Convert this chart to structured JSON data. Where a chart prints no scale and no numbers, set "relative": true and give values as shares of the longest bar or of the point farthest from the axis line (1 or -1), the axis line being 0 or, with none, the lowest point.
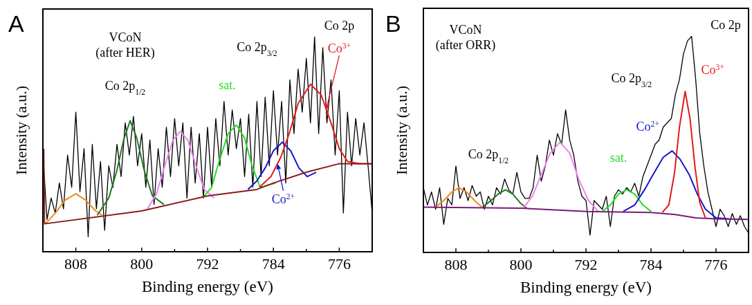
{
  "chart_data": [
    {
      "type": "line",
      "title": "A",
      "xlabel": "Binding energy (eV)",
      "ylabel": "Intensity (a.u.)",
      "relative": true,
      "xlim": [
        812,
        772
      ],
      "xticks": [
        808,
        {
          "value": 804,
          "label": null
        },
        800,
        {
          "value": 796,
          "label": null
        },
        792,
        {
          "value": 788,
          "label": null
        },
        784,
        {
          "value": 780,
          "label": null
        },
        776
      ],
      "annotations": [
        "VCoN\n(after HER)",
        "Co 2p",
        "Co 2p$_{1/2}$",
        "Co 2p$_{3/2}$"
      ],
      "series": [
        {
          "color": "#000000",
          "x": [
            812,
            811.5,
            811,
            810.5,
            810,
            809.5,
            809,
            808.5,
            808,
            807.5,
            807,
            806.5,
            806,
            805.5,
            805,
            804.5,
            804,
            803.5,
            803,
            802.5,
            802,
            801.5,
            801,
            800.5,
            800,
            799.5,
            799,
            798.5,
            798,
            797.5,
            797,
            796.5,
            796,
            795.5,
            795,
            794.5,
            794,
            793.5,
            793,
            792.5,
            792,
            791.5,
            791,
            790.5,
            790,
            789.5,
            789,
            788.5,
            788,
            787.5,
            787,
            786.5,
            786,
            785.5,
            785,
            784.5,
            784,
            783.5,
            783,
            782.5,
            782,
            781.5,
            781,
            780.5,
            780,
            779.5,
            779,
            778.5,
            778,
            777.5,
            777,
            776.5,
            776,
            775.5,
            775,
            774.5,
            774,
            773.5,
            773,
            772.5,
            772
          ],
          "values": [
            0.46,
            0.15,
            0.25,
            0.18,
            0.32,
            0.2,
            0.45,
            0.3,
            0.65,
            0.28,
            0.48,
            0.07,
            0.5,
            0.2,
            0.42,
            0.1,
            0.4,
            0.3,
            0.5,
            0.35,
            0.6,
            0.45,
            0.63,
            0.4,
            0.55,
            0.3,
            0.52,
            0.22,
            0.48,
            0.3,
            0.58,
            0.35,
            0.62,
            0.4,
            0.6,
            0.25,
            0.58,
            0.32,
            0.55,
            0.25,
            0.58,
            0.3,
            0.62,
            0.4,
            0.7,
            0.45,
            0.66,
            0.48,
            0.62,
            0.35,
            0.64,
            0.3,
            0.7,
            0.35,
            0.72,
            0.4,
            0.75,
            0.45,
            0.7,
            0.32,
            0.8,
            0.55,
            0.85,
            0.65,
            0.9,
            0.6,
            1.0,
            0.55,
            0.95,
            0.6,
            0.8,
            0.45,
            0.75,
            0.18,
            0.65,
            0.4,
            0.62,
            0.45,
            0.6,
            0.4,
            0.18
          ]
        },
        {
          "color": "#f08a1c",
          "x": [
            811.7,
            810.5,
            809.3,
            808,
            806.8,
            805.6,
            804.8
          ],
          "values": [
            0.13,
            0.18,
            0.24,
            0.27,
            0.24,
            0.19,
            0.17
          ]
        },
        {
          "color": "#1e7b1e",
          "x": [
            805.4,
            804,
            803,
            802.2,
            801.4,
            800.6,
            799.7,
            798.7,
            797.3
          ],
          "values": [
            0.17,
            0.25,
            0.38,
            0.52,
            0.61,
            0.53,
            0.38,
            0.26,
            0.22
          ]
        },
        {
          "color": "#ee82ee",
          "x": [
            799.3,
            798.2,
            797.2,
            796.2,
            795.3,
            794.4,
            793.4,
            792.4,
            791.2
          ],
          "values": [
            0.2,
            0.27,
            0.4,
            0.52,
            0.56,
            0.52,
            0.4,
            0.29,
            0.25
          ]
        },
        {
          "name": "sat.",
          "color": "#22dd22",
          "x": [
            792.6,
            791.5,
            790.6,
            789.5,
            788.5,
            787.5,
            786.6,
            785.6,
            783.7
          ],
          "values": [
            0.25,
            0.3,
            0.42,
            0.55,
            0.59,
            0.53,
            0.4,
            0.3,
            0.32
          ]
        },
        {
          "name": "Co$^{2+}$",
          "color": "#1515d0",
          "x": [
            787.1,
            786,
            785,
            784,
            782.9,
            781.9,
            780.9,
            779.9,
            778.8
          ],
          "values": [
            0.29,
            0.33,
            0.39,
            0.47,
            0.51,
            0.47,
            0.39,
            0.35,
            0.37
          ]
        },
        {
          "name": "Co$^{3+}$",
          "color": "#e01b1b",
          "x": [
            785.7,
            784.3,
            783.1,
            782,
            781,
            779.5,
            778.2,
            777,
            776,
            775,
            773.5,
            772.1
          ],
          "values": [
            0.3,
            0.35,
            0.44,
            0.56,
            0.69,
            0.78,
            0.73,
            0.6,
            0.48,
            0.42,
            0.41,
            0.41
          ]
        },
        {
          "color": "#8b1a1a",
          "x": [
            811.9,
            811.8,
            800,
            792,
            786,
            784,
            780,
            776,
            772
          ],
          "values": [
            0.48,
            0.13,
            0.19,
            0.26,
            0.29,
            0.32,
            0.37,
            0.41,
            0.41
          ]
        }
      ]
    },
    {
      "type": "line",
      "title": "B",
      "xlabel": "Binding energy (eV)",
      "ylabel": "Intensity (a.u.)",
      "relative": true,
      "xlim": [
        812,
        772
      ],
      "xticks": [
        808,
        {
          "value": 804,
          "label": null
        },
        800,
        {
          "value": 796,
          "label": null
        },
        792,
        {
          "value": 788,
          "label": null
        },
        784,
        {
          "value": 780,
          "label": null
        },
        776
      ],
      "annotations": [
        "VCoN\n(after ORR)",
        "Co 2p",
        "Co 2p$_{1/2}$",
        "Co 2p$_{3/2}$"
      ],
      "series": [
        {
          "color": "#000000",
          "x": [
            812,
            811.5,
            811,
            810.5,
            810,
            809.5,
            809,
            808.5,
            808,
            807.5,
            807,
            806.5,
            806,
            805.5,
            805,
            804.5,
            804,
            803.5,
            803,
            802.5,
            802,
            801.5,
            801,
            800.5,
            800,
            799.5,
            799,
            798.5,
            798,
            797.5,
            797,
            796.5,
            796,
            795.5,
            795,
            794.5,
            794,
            793.5,
            793,
            792.5,
            792,
            791.5,
            791,
            790.5,
            790,
            789.5,
            789,
            788.5,
            788,
            787.5,
            787,
            786.5,
            786,
            785.5,
            785,
            784.5,
            784,
            783.5,
            783,
            782.5,
            782,
            781.5,
            781,
            780.5,
            780,
            779.5,
            779,
            778.5,
            778,
            777.5,
            777,
            776.5,
            776,
            775.5,
            775,
            774.5,
            774,
            773.5,
            773,
            772.5,
            772
          ],
          "values": [
            0.3,
            0.22,
            0.28,
            0.2,
            0.3,
            0.13,
            0.25,
            0.22,
            0.4,
            0.25,
            0.3,
            0.24,
            0.31,
            0.26,
            0.28,
            0.2,
            0.26,
            0.22,
            0.3,
            0.27,
            0.34,
            0.29,
            0.27,
            0.37,
            0.28,
            0.25,
            0.25,
            0.3,
            0.45,
            0.33,
            0.4,
            0.52,
            0.45,
            0.55,
            0.5,
            0.66,
            0.52,
            0.45,
            0.33,
            0.26,
            0.24,
            0.08,
            0.24,
            0.22,
            0.2,
            0.26,
            0.12,
            0.26,
            0.29,
            0.27,
            0.3,
            0.28,
            0.32,
            0.26,
            0.35,
            0.4,
            0.45,
            0.5,
            0.52,
            0.58,
            0.6,
            0.62,
            0.73,
            0.8,
            0.92,
            0.98,
            1.0,
            0.8,
            0.55,
            0.4,
            0.28,
            0.2,
            0.12,
            0.2,
            0.17,
            0.12,
            0.18,
            0.13,
            0.17,
            0.12,
            0.09
          ]
        },
        {
          "color": "#f08a1c",
          "x": [
            810.5,
            809.5,
            808.5,
            807.6,
            806.7,
            805.7,
            804.8
          ],
          "values": [
            0.21,
            0.24,
            0.28,
            0.3,
            0.28,
            0.24,
            0.21
          ]
        },
        {
          "color": "#1e7b1e",
          "x": [
            804.7,
            803.7,
            802.8,
            801.9,
            801,
            800.1,
            799.3
          ],
          "values": [
            0.21,
            0.24,
            0.27,
            0.29,
            0.27,
            0.23,
            0.205
          ]
        },
        {
          "color": "#ee82ee",
          "x": [
            799.7,
            798.6,
            797.5,
            796.4,
            795.2,
            794,
            792.9,
            791.7,
            790.5
          ],
          "values": [
            0.205,
            0.26,
            0.36,
            0.46,
            0.51,
            0.46,
            0.34,
            0.24,
            0.19
          ]
        },
        {
          "name": "sat.",
          "color": "#22dd22",
          "x": [
            790,
            789,
            788,
            787,
            786,
            785,
            784
          ],
          "values": [
            0.19,
            0.22,
            0.27,
            0.29,
            0.27,
            0.22,
            0.19
          ]
        },
        {
          "name": "Co$^{2+}$",
          "color": "#1515d0",
          "x": [
            787.4,
            786,
            784.8,
            783.6,
            782.5,
            781.4,
            780.4,
            779.3,
            778.3,
            777.3,
            776,
            774.4
          ],
          "values": [
            0.19,
            0.22,
            0.29,
            0.37,
            0.44,
            0.47,
            0.43,
            0.36,
            0.27,
            0.2,
            0.16,
            0.155
          ]
        },
        {
          "name": "Co$^{3+}$",
          "color": "#e01b1b",
          "x": [
            782.6,
            781.8,
            781.1,
            780.5,
            779.8,
            779.2,
            778.6,
            778,
            777.3
          ],
          "values": [
            0.185,
            0.22,
            0.37,
            0.58,
            0.745,
            0.62,
            0.4,
            0.23,
            0.16
          ]
        },
        {
          "color": "#7b1a7b",
          "x": [
            812,
            800,
            792,
            784,
            781,
            778.5,
            776,
            772
          ],
          "values": [
            0.21,
            0.205,
            0.19,
            0.185,
            0.175,
            0.16,
            0.155,
            0.153
          ]
        }
      ]
    }
  ]
}
